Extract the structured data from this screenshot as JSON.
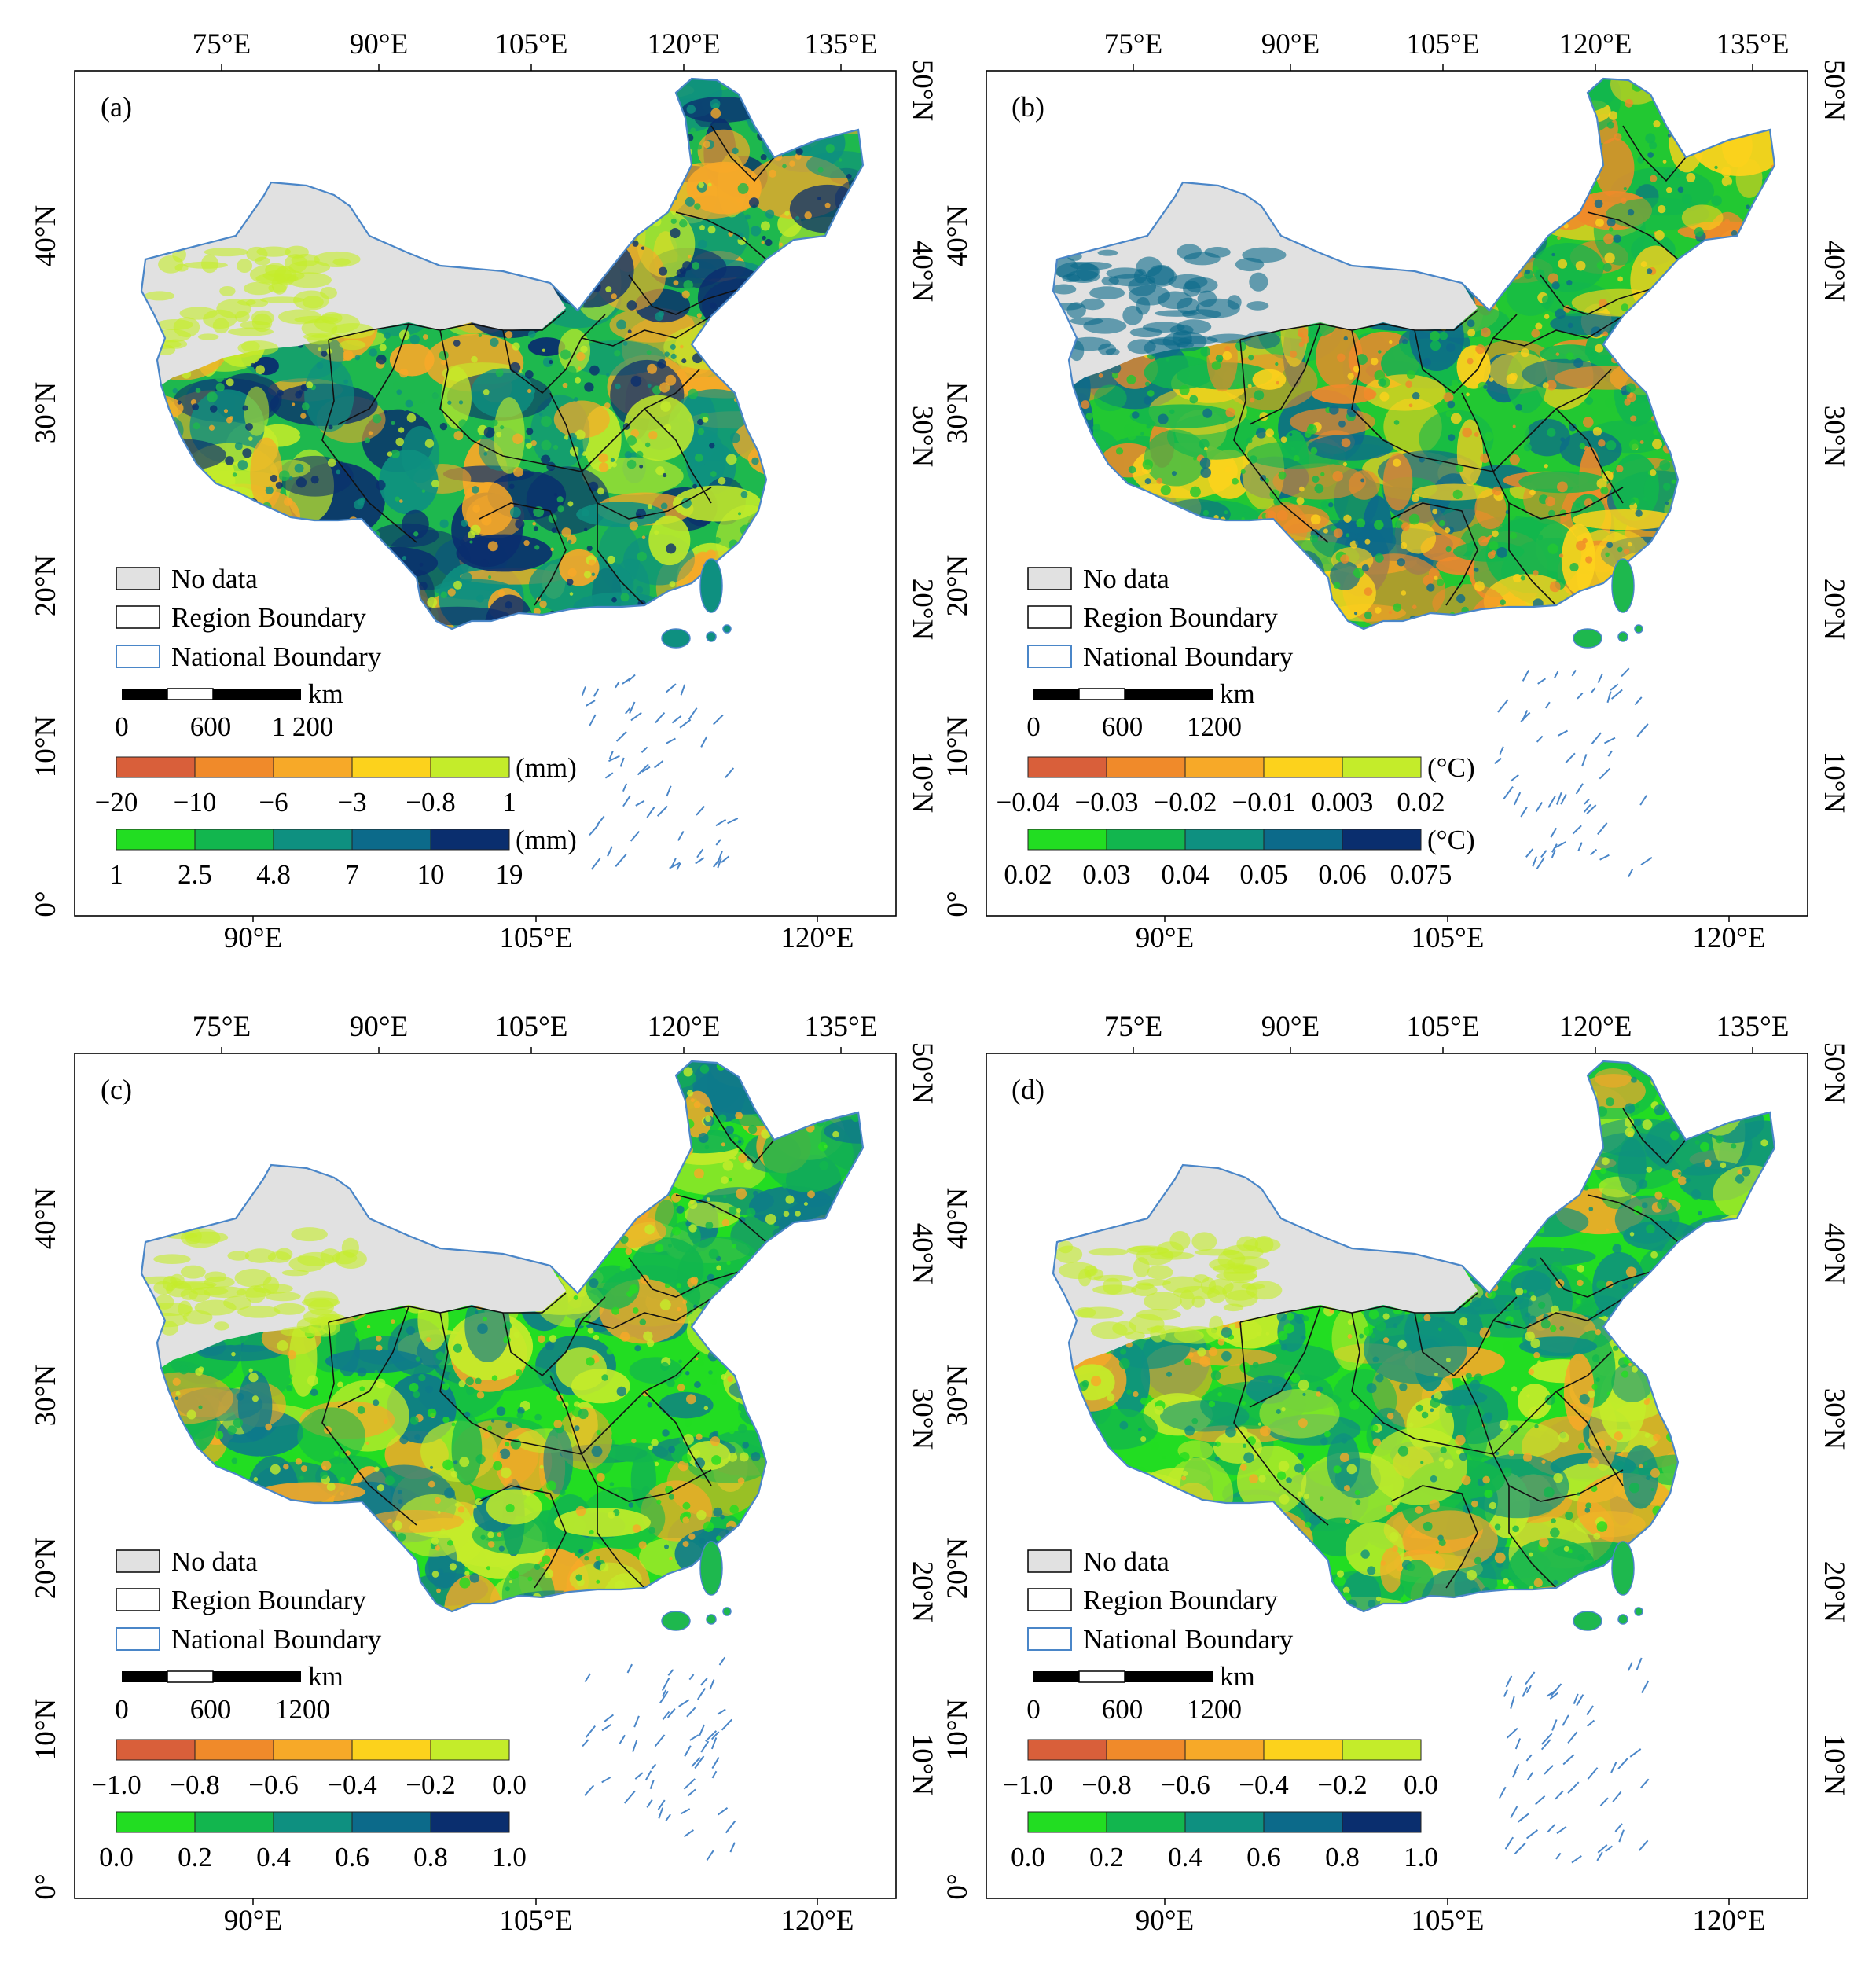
{
  "figure": {
    "top_longitude_ticks": [
      "75°E",
      "90°E",
      "105°E",
      "120°E",
      "135°E"
    ],
    "bottom_longitude_ticks": [
      "90°E",
      "105°E",
      "120°E"
    ],
    "left_latitude_ticks": [
      "0°",
      "10°N",
      "20°N",
      "30°N",
      "40°N"
    ],
    "right_latitude_ticks": [
      "10°N",
      "20°N",
      "30°N",
      "40°N",
      "50°N"
    ],
    "legend_items": {
      "no_data": "No data",
      "region_boundary": "Region Boundary",
      "national_boundary": "National Boundary"
    },
    "scalebar": {
      "unit": "km",
      "labels": [
        "0",
        "600",
        "1200"
      ]
    },
    "colors": {
      "negative_ramp": [
        "#d95f3a",
        "#f08a2a",
        "#f7a928",
        "#fcd21c",
        "#c4ec2a"
      ],
      "positive_ramp": [
        "#22dd22",
        "#12b64e",
        "#0e9080",
        "#0c6a8a",
        "#0a2e6e"
      ],
      "no_data": "#e1e1e1",
      "national_boundary": "#4a86c8"
    }
  },
  "panels": [
    {
      "id": "a",
      "label": "(a)",
      "unit_neg": "(mm)",
      "unit_pos": "(mm)",
      "neg_ticks": [
        "−20",
        "−10",
        "−6",
        "−3",
        "−0.8",
        "1"
      ],
      "pos_ticks": [
        "1",
        "2.5",
        "4.8",
        "7",
        "10",
        "19"
      ],
      "scalebar_labels": [
        "0",
        "600",
        "1 200"
      ],
      "dominant": [
        "#1eb84e",
        "#0e9080",
        "#f7a928",
        "#c4ec2a",
        "#0a2e6e"
      ]
    },
    {
      "id": "b",
      "label": "(b)",
      "unit_neg": "(°C)",
      "unit_pos": "(°C)",
      "neg_ticks": [
        "−0.04",
        "−0.03",
        "−0.02",
        "−0.01",
        "0.003",
        "0.02"
      ],
      "pos_ticks": [
        "0.02",
        "0.03",
        "0.04",
        "0.05",
        "0.06",
        "0.075"
      ],
      "scalebar_labels": [
        "0",
        "600",
        "1200"
      ],
      "dominant": [
        "#22c832",
        "#12b64e",
        "#f08a2a",
        "#0c6a8a",
        "#fcd21c"
      ]
    },
    {
      "id": "c",
      "label": "(c)",
      "unit_neg": "",
      "unit_pos": "",
      "neg_ticks": [
        "−1.0",
        "−0.8",
        "−0.6",
        "−0.4",
        "−0.2",
        "0.0"
      ],
      "pos_ticks": [
        "0.0",
        "0.2",
        "0.4",
        "0.6",
        "0.8",
        "1.0"
      ],
      "scalebar_labels": [
        "0",
        "600",
        "1200"
      ],
      "dominant": [
        "#22dd22",
        "#12b64e",
        "#0e7a8a",
        "#c4ec2a",
        "#f7a928"
      ]
    },
    {
      "id": "d",
      "label": "(d)",
      "unit_neg": "",
      "unit_pos": "",
      "neg_ticks": [
        "−1.0",
        "−0.8",
        "−0.6",
        "−0.4",
        "−0.2",
        "0.0"
      ],
      "pos_ticks": [
        "0.0",
        "0.2",
        "0.4",
        "0.6",
        "0.8",
        "1.0"
      ],
      "scalebar_labels": [
        "0",
        "600",
        "1200"
      ],
      "dominant": [
        "#22dd22",
        "#12b64e",
        "#f7a928",
        "#c4ec2a",
        "#0e9080"
      ]
    }
  ]
}
